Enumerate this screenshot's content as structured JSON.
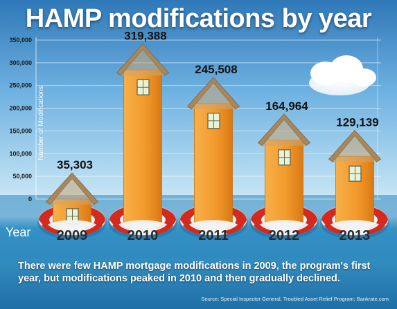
{
  "title": "HAMP modifications by year",
  "caption": "There were few HAMP mortgage modifications in 2009, the program's first year, but modifications peaked in 2010 and then gradually declined.",
  "source": "Source: Special Inspector General, Troubled Asset Relief Program; Bankrate.com",
  "colors": {
    "bar": "#f39a2c",
    "roof": "#a8875c",
    "ring_red": "#d42a1e",
    "ring_white": "#f2f2f2"
  },
  "chart_data": {
    "type": "bar",
    "title": "HAMP modifications by year",
    "xlabel": "Year",
    "ylabel": "Number of Modifications",
    "categories": [
      "2009",
      "2010",
      "2011",
      "2012",
      "2013"
    ],
    "values": [
      35303,
      319388,
      245508,
      164964,
      129139
    ],
    "value_labels": [
      "35,303",
      "319,388",
      "245,508",
      "164,964",
      "129,139"
    ],
    "yticks": [
      "0",
      "50,000",
      "100,000",
      "150,000",
      "200,000",
      "250,000",
      "300,000",
      "350,000"
    ],
    "ylim": [
      0,
      350000
    ],
    "grid": true
  }
}
